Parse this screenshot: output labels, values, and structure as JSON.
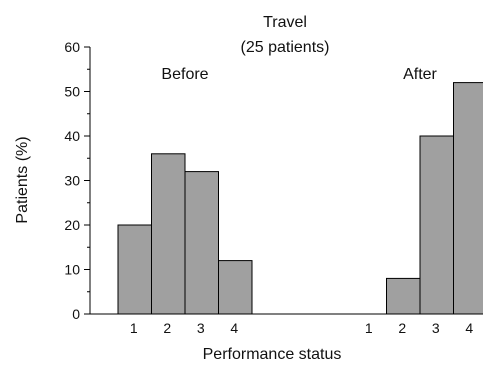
{
  "chart_data": {
    "type": "bar",
    "title": "Travel",
    "subtitle": "(25 patients)",
    "xlabel": "Performance status",
    "ylabel": "Patients (%)",
    "ylim": [
      0,
      60
    ],
    "yticks": [
      0,
      10,
      20,
      30,
      40,
      50,
      60
    ],
    "grid": false,
    "bar_color": "#a0a0a0",
    "groups": [
      {
        "name": "Before",
        "categories": [
          "1",
          "2",
          "3",
          "4"
        ],
        "values": [
          20,
          36,
          32,
          12
        ]
      },
      {
        "name": "After",
        "categories": [
          "1",
          "2",
          "3",
          "4"
        ],
        "values": [
          0,
          8,
          40,
          52
        ]
      }
    ]
  }
}
